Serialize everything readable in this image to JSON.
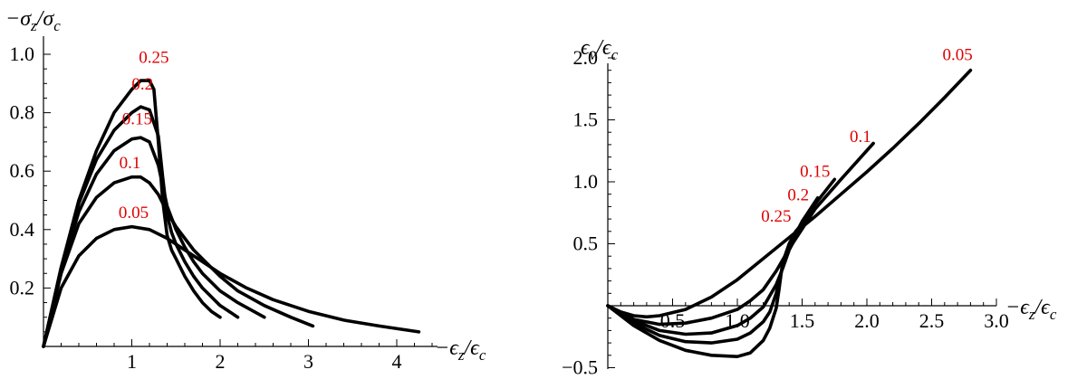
{
  "chart_data": [
    {
      "type": "line",
      "title": "",
      "xlabel": "−ϵz/ϵc",
      "ylabel": "−σz/σc",
      "xlim": [
        0,
        4.5
      ],
      "ylim": [
        0,
        1.0
      ],
      "x_ticks": [
        1,
        2,
        3,
        4
      ],
      "x_tick_labels": [
        "1",
        "2",
        "3",
        "4"
      ],
      "y_ticks": [
        0.2,
        0.4,
        0.6,
        0.8,
        1.0
      ],
      "y_tick_labels": [
        "0.2",
        "0.4",
        "0.6",
        "0.8",
        "1.0"
      ],
      "grid": false,
      "series": [
        {
          "name": "0.25",
          "x": [
            0,
            0.2,
            0.4,
            0.6,
            0.8,
            1.0,
            1.1,
            1.2,
            1.25,
            1.3,
            1.35,
            1.4,
            1.45,
            1.5,
            1.6,
            1.7,
            1.8,
            1.9,
            2.0
          ],
          "y": [
            0,
            0.27,
            0.5,
            0.67,
            0.8,
            0.88,
            0.91,
            0.91,
            0.88,
            0.7,
            0.5,
            0.38,
            0.33,
            0.3,
            0.24,
            0.19,
            0.15,
            0.12,
            0.1
          ]
        },
        {
          "name": "0.2",
          "x": [
            0,
            0.2,
            0.4,
            0.6,
            0.8,
            1.0,
            1.1,
            1.2,
            1.3,
            1.35,
            1.4,
            1.45,
            1.5,
            1.6,
            1.7,
            1.8,
            1.9,
            2.0,
            2.1,
            2.2
          ],
          "y": [
            0,
            0.27,
            0.49,
            0.64,
            0.74,
            0.8,
            0.82,
            0.81,
            0.72,
            0.58,
            0.45,
            0.39,
            0.35,
            0.29,
            0.24,
            0.2,
            0.17,
            0.14,
            0.12,
            0.1
          ]
        },
        {
          "name": "0.15",
          "x": [
            0,
            0.2,
            0.4,
            0.6,
            0.8,
            1.0,
            1.1,
            1.2,
            1.3,
            1.4,
            1.5,
            1.6,
            1.7,
            1.8,
            2.0,
            2.2,
            2.5
          ],
          "y": [
            0,
            0.26,
            0.46,
            0.59,
            0.67,
            0.71,
            0.715,
            0.7,
            0.62,
            0.48,
            0.4,
            0.34,
            0.29,
            0.25,
            0.19,
            0.15,
            0.1
          ]
        },
        {
          "name": "0.1",
          "x": [
            0,
            0.2,
            0.4,
            0.6,
            0.8,
            1.0,
            1.1,
            1.2,
            1.3,
            1.4,
            1.5,
            1.6,
            1.7,
            1.8,
            2.0,
            2.2,
            2.5,
            2.8,
            3.05
          ],
          "y": [
            0,
            0.25,
            0.42,
            0.51,
            0.56,
            0.58,
            0.58,
            0.56,
            0.52,
            0.46,
            0.41,
            0.37,
            0.33,
            0.3,
            0.24,
            0.19,
            0.14,
            0.1,
            0.07
          ]
        },
        {
          "name": "0.05",
          "x": [
            0,
            0.2,
            0.4,
            0.6,
            0.8,
            1.0,
            1.2,
            1.4,
            1.6,
            1.8,
            2.0,
            2.3,
            2.6,
            3.0,
            3.4,
            3.8,
            4.25
          ],
          "y": [
            0,
            0.2,
            0.31,
            0.37,
            0.4,
            0.41,
            0.4,
            0.37,
            0.33,
            0.29,
            0.25,
            0.2,
            0.16,
            0.12,
            0.09,
            0.07,
            0.05
          ]
        }
      ]
    },
    {
      "type": "line",
      "title": "",
      "xlabel": "−ϵz/ϵc",
      "ylabel": "ϵv/ϵc",
      "xlim": [
        0,
        3.0
      ],
      "ylim": [
        -0.5,
        2.0
      ],
      "x_ticks": [
        0.5,
        1.0,
        1.5,
        2.0,
        2.5,
        3.0
      ],
      "x_tick_labels": [
        "0.5",
        "1.0",
        "1.5",
        "2.0",
        "2.5",
        "3.0"
      ],
      "y_ticks": [
        -0.5,
        0.5,
        1.0,
        1.5,
        2.0
      ],
      "y_tick_labels": [
        "−0.5",
        "0.5",
        "1.0",
        "1.5",
        "2.0"
      ],
      "grid": false,
      "series": [
        {
          "name": "0.05",
          "x": [
            0,
            0.1,
            0.2,
            0.3,
            0.4,
            0.6,
            0.8,
            1.0,
            1.2,
            1.4,
            1.6,
            1.8,
            2.0,
            2.2,
            2.4,
            2.6,
            2.8
          ],
          "y": [
            0,
            -0.05,
            -0.08,
            -0.09,
            -0.08,
            -0.03,
            0.07,
            0.21,
            0.38,
            0.55,
            0.72,
            0.9,
            1.08,
            1.27,
            1.47,
            1.68,
            1.9
          ]
        },
        {
          "name": "0.1",
          "x": [
            0,
            0.2,
            0.4,
            0.6,
            0.8,
            1.0,
            1.1,
            1.2,
            1.3,
            1.4,
            1.5,
            1.6,
            1.8,
            2.05
          ],
          "y": [
            0,
            -0.11,
            -0.15,
            -0.14,
            -0.1,
            -0.03,
            0.04,
            0.13,
            0.28,
            0.46,
            0.62,
            0.78,
            1.02,
            1.31
          ]
        },
        {
          "name": "0.15",
          "x": [
            0,
            0.2,
            0.4,
            0.6,
            0.8,
            1.0,
            1.1,
            1.2,
            1.3,
            1.35,
            1.4,
            1.5,
            1.6,
            1.75
          ],
          "y": [
            0,
            -0.12,
            -0.2,
            -0.23,
            -0.22,
            -0.16,
            -0.1,
            -0.01,
            0.17,
            0.3,
            0.45,
            0.65,
            0.82,
            1.02
          ]
        },
        {
          "name": "0.2",
          "x": [
            0,
            0.2,
            0.4,
            0.6,
            0.8,
            1.0,
            1.1,
            1.2,
            1.25,
            1.3,
            1.35,
            1.4,
            1.5,
            1.62
          ],
          "y": [
            0,
            -0.14,
            -0.24,
            -0.29,
            -0.3,
            -0.27,
            -0.22,
            -0.13,
            -0.05,
            0.1,
            0.32,
            0.48,
            0.68,
            0.87
          ]
        },
        {
          "name": "0.25",
          "x": [
            0,
            0.2,
            0.4,
            0.6,
            0.8,
            1.0,
            1.1,
            1.2,
            1.25,
            1.3,
            1.32,
            1.35,
            1.4,
            1.45,
            1.55
          ],
          "y": [
            0,
            -0.16,
            -0.28,
            -0.36,
            -0.4,
            -0.41,
            -0.38,
            -0.28,
            -0.18,
            -0.02,
            0.12,
            0.35,
            0.5,
            0.6,
            0.72
          ]
        }
      ]
    }
  ]
}
